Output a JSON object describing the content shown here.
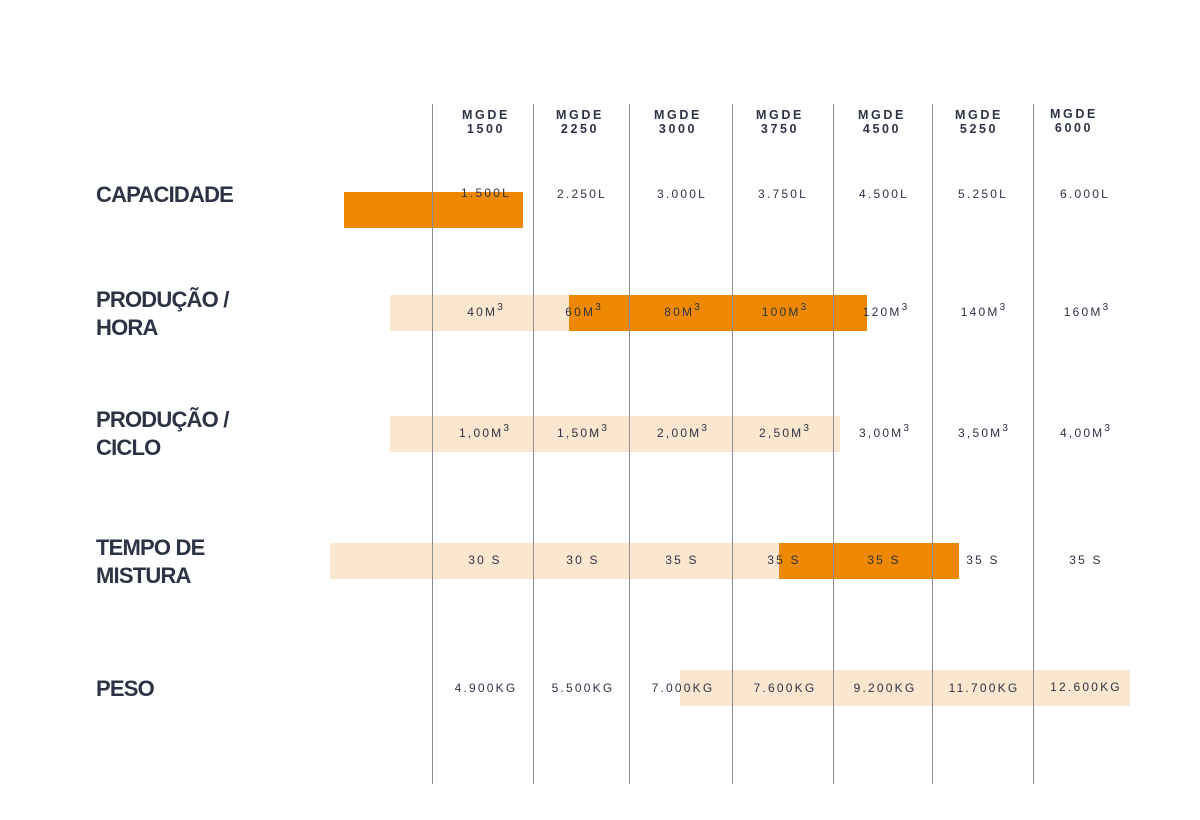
{
  "models": [
    {
      "line1": "MGDE",
      "line2": "1500"
    },
    {
      "line1": "MGDE",
      "line2": "2250"
    },
    {
      "line1": "MGDE",
      "line2": "3000"
    },
    {
      "line1": "MGDE",
      "line2": "3750"
    },
    {
      "line1": "MGDE",
      "line2": "4500"
    },
    {
      "line1": "MGDE",
      "line2": "5250"
    },
    {
      "line1": "MGDE",
      "line2": "6000"
    }
  ],
  "rows": [
    {
      "label_lines": [
        "CAPACIDADE"
      ],
      "unit": "",
      "values": [
        "1.500L",
        "2.250L",
        "3.000L",
        "3.750L",
        "4.500L",
        "5.250L",
        "6.000L"
      ]
    },
    {
      "label_lines": [
        "PRODUÇÃO /",
        "HORA"
      ],
      "unit": "3",
      "values": [
        "40M",
        "60M",
        "80M",
        "100M",
        "120M",
        "140M",
        "160M"
      ]
    },
    {
      "label_lines": [
        "PRODUÇÃO /",
        "CICLO"
      ],
      "unit": "3",
      "values": [
        "1,00M",
        "1,50M",
        "2,00M",
        "2,50M",
        "3,00M",
        "3,50M",
        "4,00M"
      ]
    },
    {
      "label_lines": [
        "TEMPO DE",
        "MISTURA"
      ],
      "unit": "",
      "values": [
        "30 S",
        "30 S",
        "35 S",
        "35 S",
        "35 S",
        "35 S",
        "35 S"
      ]
    },
    {
      "label_lines": [
        "PESO"
      ],
      "unit": "",
      "values": [
        "4.900KG",
        "5.500KG",
        "7.000KG",
        "7.600KG",
        "9.200KG",
        "11.700KG",
        "12.600KG"
      ]
    }
  ],
  "colors": {
    "accent": "#ee8800",
    "accent_light": "#fbe6cf",
    "text": "#2c3345",
    "rule": "#8a8d94"
  }
}
